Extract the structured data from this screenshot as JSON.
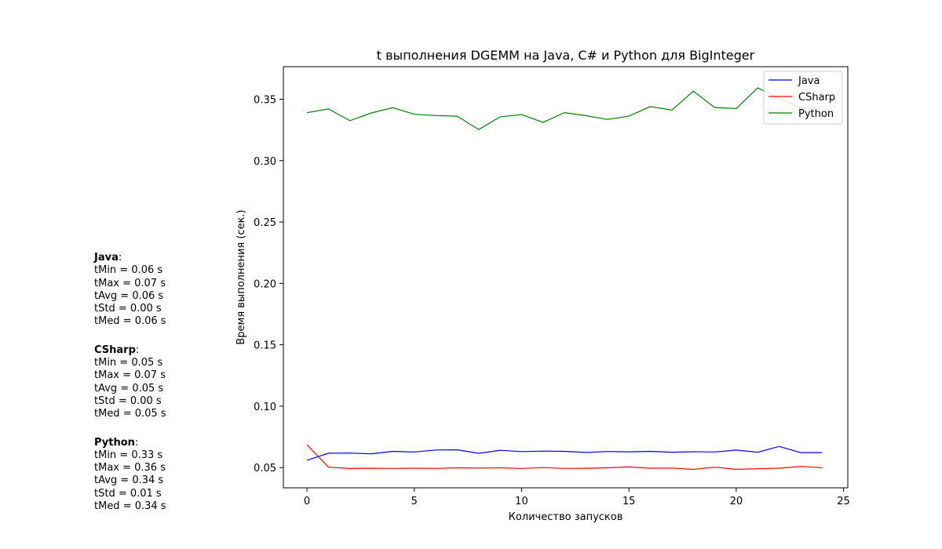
{
  "stats": [
    {
      "name": "Java",
      "lines": [
        "tMin = 0.06 s",
        "tMax = 0.07 s",
        "tAvg = 0.06 s",
        "tStd = 0.00 s",
        "tMed = 0.06 s"
      ]
    },
    {
      "name": "CSharp",
      "lines": [
        "tMin = 0.05 s",
        "tMax = 0.07 s",
        "tAvg = 0.05 s",
        "tStd = 0.00 s",
        "tMed = 0.05 s"
      ]
    },
    {
      "name": "Python",
      "lines": [
        "tMin = 0.33 s",
        "tMax = 0.36 s",
        "tAvg = 0.34 s",
        "tStd = 0.01 s",
        "tMed = 0.34 s"
      ]
    }
  ],
  "chart_data": {
    "type": "line",
    "title": "t выполнения DGEMM на Java, C# и Python для BigInteger",
    "xlabel": "Количество запусков",
    "ylabel": "Время выполнения (сек.)",
    "xlim": [
      -1.1,
      25.2
    ],
    "ylim": [
      0.0335,
      0.3765
    ],
    "xticks": [
      0,
      5,
      10,
      15,
      20,
      25
    ],
    "yticks": [
      0.05,
      0.1,
      0.15,
      0.2,
      0.25,
      0.3,
      0.35
    ],
    "ytick_labels": [
      "0.05",
      "0.10",
      "0.15",
      "0.20",
      "0.25",
      "0.30",
      "0.35"
    ],
    "legend_position": "top-right",
    "grid": false,
    "x": [
      0,
      1,
      2,
      3,
      4,
      5,
      6,
      7,
      8,
      9,
      10,
      11,
      12,
      13,
      14,
      15,
      16,
      17,
      18,
      19,
      20,
      21,
      22,
      23,
      24
    ],
    "series": [
      {
        "name": "Java",
        "color": "#0000ff",
        "values": [
          0.056,
          0.0617,
          0.0618,
          0.0612,
          0.0632,
          0.0627,
          0.0643,
          0.0645,
          0.0616,
          0.064,
          0.063,
          0.0634,
          0.0632,
          0.0623,
          0.0631,
          0.0628,
          0.0632,
          0.0625,
          0.0629,
          0.0627,
          0.0642,
          0.0625,
          0.0672,
          0.0622,
          0.0622
        ]
      },
      {
        "name": "CSharp",
        "color": "#ff0000",
        "values": [
          0.0685,
          0.0503,
          0.0492,
          0.0495,
          0.0493,
          0.0495,
          0.0493,
          0.0498,
          0.0496,
          0.0498,
          0.0493,
          0.05,
          0.0493,
          0.0494,
          0.0498,
          0.0505,
          0.0495,
          0.0496,
          0.0485,
          0.0503,
          0.0486,
          0.049,
          0.0495,
          0.0509,
          0.0499
        ]
      },
      {
        "name": "Python",
        "color": "#008000",
        "values": [
          0.339,
          0.3421,
          0.3325,
          0.3388,
          0.3431,
          0.3377,
          0.3367,
          0.3362,
          0.3253,
          0.3357,
          0.3375,
          0.3311,
          0.3391,
          0.3366,
          0.3335,
          0.3362,
          0.344,
          0.3411,
          0.3565,
          0.3432,
          0.3424,
          0.3592,
          0.3508,
          0.3425,
          0.3432
        ]
      }
    ]
  }
}
